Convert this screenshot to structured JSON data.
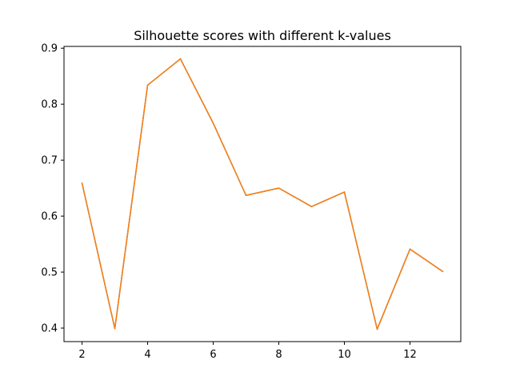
{
  "chart_data": {
    "type": "line",
    "title": "Silhouette scores with different k-values",
    "xlabel": "",
    "ylabel": "",
    "x": [
      2,
      3,
      4,
      5,
      6,
      7,
      8,
      9,
      10,
      11,
      12,
      13
    ],
    "series": [
      {
        "color": "#1f77b4",
        "values": [
          0.659,
          0.399,
          0.834,
          0.881,
          0.766,
          0.637,
          0.65,
          0.617,
          0.643,
          0.398,
          0.541,
          0.501
        ]
      },
      {
        "color": "#ff7f0e",
        "values": [
          0.659,
          0.399,
          0.834,
          0.881,
          0.766,
          0.637,
          0.65,
          0.617,
          0.643,
          0.398,
          0.541,
          0.501
        ]
      }
    ],
    "xlim": [
      1.45,
      13.55
    ],
    "ylim": [
      0.3758,
      0.9032
    ],
    "xticks": [
      2,
      4,
      6,
      8,
      10,
      12
    ],
    "xtick_labels": [
      "2",
      "4",
      "6",
      "8",
      "10",
      "12"
    ],
    "yticks": [
      0.4,
      0.5,
      0.6,
      0.7,
      0.8,
      0.9
    ],
    "ytick_labels": [
      "0.4",
      "0.5",
      "0.6",
      "0.7",
      "0.8",
      "0.9"
    ],
    "grid": false,
    "legend": "none"
  }
}
